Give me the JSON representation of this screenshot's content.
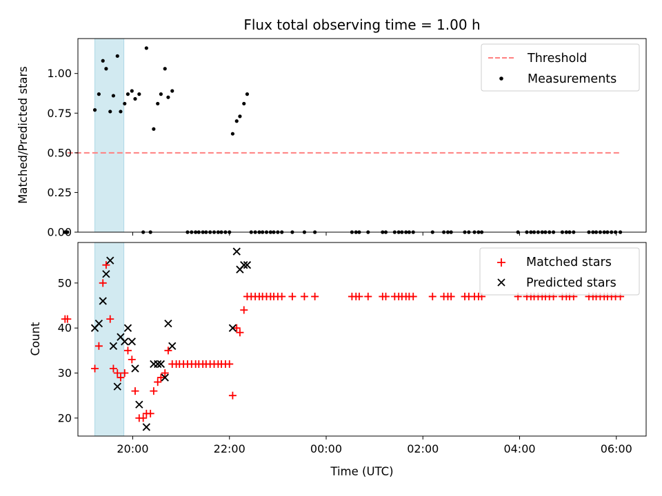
{
  "chart_data": [
    {
      "type": "scatter",
      "title": "Flux total observing time = 1.00 h",
      "xlabel": "",
      "ylabel": "Matched/Predicted stars",
      "xlim": [
        "18:52",
        "06:37"
      ],
      "ylim": [
        0,
        1.22
      ],
      "yticks": [
        0.0,
        0.25,
        0.5,
        0.75,
        1.0
      ],
      "ytick_labels": [
        "0.00",
        "0.25",
        "0.50",
        "0.75",
        "1.00"
      ],
      "shaded_span": {
        "start": "19:13",
        "end": "19:49",
        "color": "#add8e6"
      },
      "grid": false,
      "legend": {
        "position": "top-right",
        "entries": [
          {
            "label": "Threshold",
            "style": "dashed-line",
            "color": "#ff7f7f"
          },
          {
            "label": "Measurements",
            "style": "dot",
            "color": "#000000"
          }
        ]
      },
      "series": [
        {
          "name": "Threshold",
          "style": "dashed-line",
          "color": "#ff7f7f",
          "points": [
            [
              "18:39",
              0.5
            ],
            [
              "06:05",
              0.5
            ]
          ]
        },
        {
          "name": "Measurements",
          "style": "dot",
          "color": "#000000",
          "points": [
            [
              "18:36",
              0.0
            ],
            [
              "18:39",
              0.0
            ],
            [
              "19:13",
              0.77
            ],
            [
              "19:18",
              0.87
            ],
            [
              "19:23",
              1.08
            ],
            [
              "19:27",
              1.03
            ],
            [
              "19:32",
              0.76
            ],
            [
              "19:36",
              0.86
            ],
            [
              "19:41",
              1.11
            ],
            [
              "19:45",
              0.76
            ],
            [
              "19:50",
              0.81
            ],
            [
              "19:54",
              0.87
            ],
            [
              "19:59",
              0.89
            ],
            [
              "20:03",
              0.84
            ],
            [
              "20:08",
              0.87
            ],
            [
              "20:13",
              0.0
            ],
            [
              "20:17",
              1.16
            ],
            [
              "20:22",
              0.0
            ],
            [
              "20:26",
              0.65
            ],
            [
              "20:31",
              0.81
            ],
            [
              "20:35",
              0.87
            ],
            [
              "20:40",
              1.03
            ],
            [
              "20:44",
              0.85
            ],
            [
              "20:49",
              0.89
            ],
            [
              "21:08",
              0.0
            ],
            [
              "21:13",
              0.0
            ],
            [
              "21:18",
              0.0
            ],
            [
              "21:22",
              0.0
            ],
            [
              "21:27",
              0.0
            ],
            [
              "21:31",
              0.0
            ],
            [
              "21:36",
              0.0
            ],
            [
              "21:41",
              0.0
            ],
            [
              "21:46",
              0.0
            ],
            [
              "21:50",
              0.0
            ],
            [
              "21:55",
              0.0
            ],
            [
              "22:00",
              0.0
            ],
            [
              "22:04",
              0.62
            ],
            [
              "22:09",
              0.7
            ],
            [
              "22:13",
              0.73
            ],
            [
              "22:18",
              0.81
            ],
            [
              "22:22",
              0.87
            ],
            [
              "22:27",
              0.0
            ],
            [
              "22:32",
              0.0
            ],
            [
              "22:37",
              0.0
            ],
            [
              "22:41",
              0.0
            ],
            [
              "22:46",
              0.0
            ],
            [
              "22:51",
              0.0
            ],
            [
              "22:55",
              0.0
            ],
            [
              "23:00",
              0.0
            ],
            [
              "23:05",
              0.0
            ],
            [
              "23:18",
              0.0
            ],
            [
              "23:33",
              0.0
            ],
            [
              "23:46",
              0.0
            ],
            [
              "00:32",
              0.0
            ],
            [
              "00:37",
              0.0
            ],
            [
              "00:41",
              0.0
            ],
            [
              "00:52",
              0.0
            ],
            [
              "01:10",
              0.0
            ],
            [
              "01:14",
              0.0
            ],
            [
              "01:25",
              0.0
            ],
            [
              "01:30",
              0.0
            ],
            [
              "01:34",
              0.0
            ],
            [
              "01:39",
              0.0
            ],
            [
              "01:43",
              0.0
            ],
            [
              "01:48",
              0.0
            ],
            [
              "02:12",
              0.0
            ],
            [
              "02:26",
              0.0
            ],
            [
              "02:31",
              0.0
            ],
            [
              "02:35",
              0.0
            ],
            [
              "02:52",
              0.0
            ],
            [
              "02:57",
              0.0
            ],
            [
              "03:04",
              0.0
            ],
            [
              "03:09",
              0.0
            ],
            [
              "03:13",
              0.0
            ],
            [
              "03:58",
              0.0
            ],
            [
              "04:09",
              0.0
            ],
            [
              "04:14",
              0.0
            ],
            [
              "04:18",
              0.0
            ],
            [
              "04:23",
              0.0
            ],
            [
              "04:28",
              0.0
            ],
            [
              "04:32",
              0.0
            ],
            [
              "04:37",
              0.0
            ],
            [
              "04:42",
              0.0
            ],
            [
              "04:53",
              0.0
            ],
            [
              "04:58",
              0.0
            ],
            [
              "05:02",
              0.0
            ],
            [
              "05:07",
              0.0
            ],
            [
              "05:26",
              0.0
            ],
            [
              "05:31",
              0.0
            ],
            [
              "05:35",
              0.0
            ],
            [
              "05:40",
              0.0
            ],
            [
              "05:45",
              0.0
            ],
            [
              "05:49",
              0.0
            ],
            [
              "05:54",
              0.0
            ],
            [
              "05:59",
              0.0
            ],
            [
              "06:05",
              0.0
            ]
          ]
        }
      ]
    },
    {
      "type": "scatter",
      "title": "",
      "xlabel": "Time (UTC)",
      "ylabel": "Count",
      "xlim": [
        "18:52",
        "06:37"
      ],
      "ylim": [
        16,
        59
      ],
      "yticks": [
        20,
        30,
        40,
        50
      ],
      "xticks": [
        "20:00",
        "22:00",
        "00:00",
        "02:00",
        "04:00",
        "06:00"
      ],
      "shaded_span": {
        "start": "19:13",
        "end": "19:49",
        "color": "#add8e6"
      },
      "grid": false,
      "legend": {
        "position": "top-right",
        "entries": [
          {
            "label": "Matched stars",
            "style": "plus",
            "color": "#ff0000"
          },
          {
            "label": "Predicted stars",
            "style": "x",
            "color": "#000000"
          }
        ]
      },
      "series": [
        {
          "name": "Matched stars",
          "style": "plus",
          "color": "#ff0000",
          "points": [
            [
              "18:36",
              42
            ],
            [
              "18:39",
              42
            ],
            [
              "19:13",
              31
            ],
            [
              "19:18",
              36
            ],
            [
              "19:23",
              50
            ],
            [
              "19:27",
              54
            ],
            [
              "19:32",
              42
            ],
            [
              "19:36",
              31
            ],
            [
              "19:41",
              30
            ],
            [
              "19:45",
              29
            ],
            [
              "19:50",
              30
            ],
            [
              "19:54",
              35
            ],
            [
              "19:59",
              33
            ],
            [
              "20:03",
              26
            ],
            [
              "20:08",
              20
            ],
            [
              "20:13",
              20
            ],
            [
              "20:17",
              21
            ],
            [
              "20:22",
              21
            ],
            [
              "20:26",
              26
            ],
            [
              "20:31",
              28
            ],
            [
              "20:35",
              29
            ],
            [
              "20:40",
              30
            ],
            [
              "20:44",
              35
            ],
            [
              "20:49",
              32
            ],
            [
              "20:54",
              32
            ],
            [
              "20:58",
              32
            ],
            [
              "21:03",
              32
            ],
            [
              "21:08",
              32
            ],
            [
              "21:13",
              32
            ],
            [
              "21:18",
              32
            ],
            [
              "21:22",
              32
            ],
            [
              "21:27",
              32
            ],
            [
              "21:31",
              32
            ],
            [
              "21:36",
              32
            ],
            [
              "21:41",
              32
            ],
            [
              "21:46",
              32
            ],
            [
              "21:50",
              32
            ],
            [
              "21:55",
              32
            ],
            [
              "22:00",
              32
            ],
            [
              "22:04",
              25
            ],
            [
              "22:09",
              40
            ],
            [
              "22:13",
              39
            ],
            [
              "22:18",
              44
            ],
            [
              "22:22",
              47
            ],
            [
              "22:27",
              47
            ],
            [
              "22:32",
              47
            ],
            [
              "22:37",
              47
            ],
            [
              "22:41",
              47
            ],
            [
              "22:46",
              47
            ],
            [
              "22:51",
              47
            ],
            [
              "22:55",
              47
            ],
            [
              "23:00",
              47
            ],
            [
              "23:05",
              47
            ],
            [
              "23:18",
              47
            ],
            [
              "23:33",
              47
            ],
            [
              "23:46",
              47
            ],
            [
              "00:32",
              47
            ],
            [
              "00:37",
              47
            ],
            [
              "00:41",
              47
            ],
            [
              "00:52",
              47
            ],
            [
              "01:10",
              47
            ],
            [
              "01:14",
              47
            ],
            [
              "01:25",
              47
            ],
            [
              "01:30",
              47
            ],
            [
              "01:34",
              47
            ],
            [
              "01:39",
              47
            ],
            [
              "01:43",
              47
            ],
            [
              "01:48",
              47
            ],
            [
              "02:12",
              47
            ],
            [
              "02:26",
              47
            ],
            [
              "02:31",
              47
            ],
            [
              "02:35",
              47
            ],
            [
              "02:52",
              47
            ],
            [
              "02:57",
              47
            ],
            [
              "03:04",
              47
            ],
            [
              "03:09",
              47
            ],
            [
              "03:13",
              47
            ],
            [
              "03:58",
              47
            ],
            [
              "04:09",
              47
            ],
            [
              "04:14",
              47
            ],
            [
              "04:18",
              47
            ],
            [
              "04:23",
              47
            ],
            [
              "04:28",
              47
            ],
            [
              "04:32",
              47
            ],
            [
              "04:37",
              47
            ],
            [
              "04:42",
              47
            ],
            [
              "04:53",
              47
            ],
            [
              "04:58",
              47
            ],
            [
              "05:02",
              47
            ],
            [
              "05:07",
              47
            ],
            [
              "05:26",
              47
            ],
            [
              "05:31",
              47
            ],
            [
              "05:35",
              47
            ],
            [
              "05:40",
              47
            ],
            [
              "05:45",
              47
            ],
            [
              "05:49",
              47
            ],
            [
              "05:54",
              47
            ],
            [
              "05:59",
              47
            ],
            [
              "06:05",
              47
            ]
          ]
        },
        {
          "name": "Predicted stars",
          "style": "x",
          "color": "#000000",
          "points": [
            [
              "19:13",
              40
            ],
            [
              "19:18",
              41
            ],
            [
              "19:23",
              46
            ],
            [
              "19:27",
              52
            ],
            [
              "19:32",
              55
            ],
            [
              "19:36",
              36
            ],
            [
              "19:41",
              27
            ],
            [
              "19:45",
              38
            ],
            [
              "19:50",
              37
            ],
            [
              "19:54",
              40
            ],
            [
              "19:59",
              37
            ],
            [
              "20:03",
              31
            ],
            [
              "20:08",
              23
            ],
            [
              "20:17",
              18
            ],
            [
              "20:26",
              32
            ],
            [
              "20:31",
              32
            ],
            [
              "20:35",
              32
            ],
            [
              "20:40",
              29
            ],
            [
              "20:44",
              41
            ],
            [
              "20:49",
              36
            ],
            [
              "22:04",
              40
            ],
            [
              "22:09",
              57
            ],
            [
              "22:13",
              53
            ],
            [
              "22:18",
              54
            ],
            [
              "22:22",
              54
            ]
          ]
        }
      ]
    }
  ]
}
